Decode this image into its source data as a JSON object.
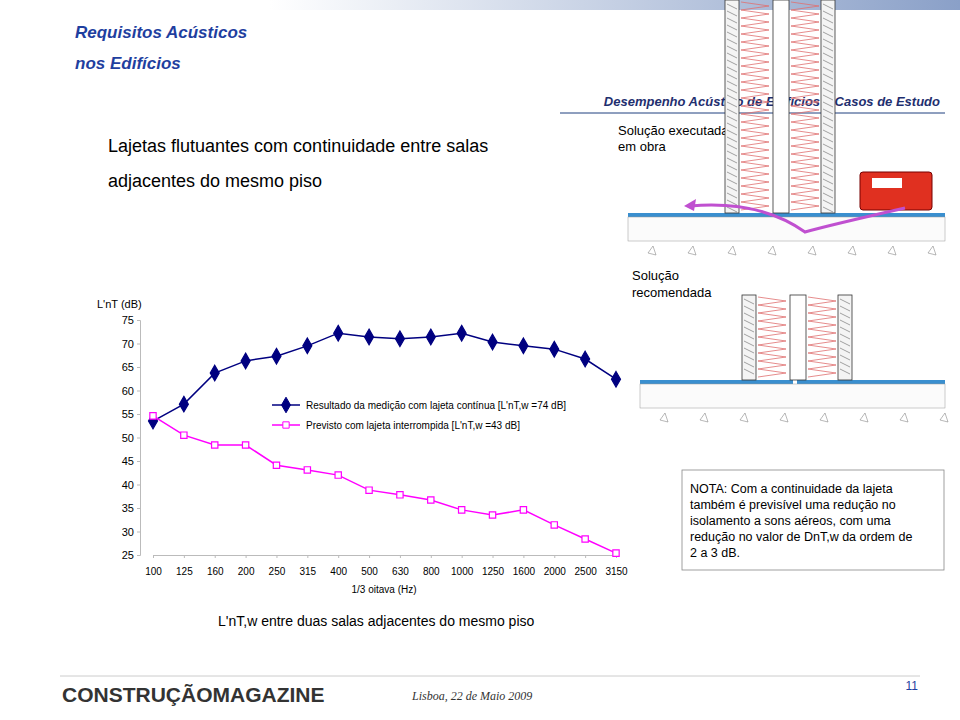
{
  "slide": {
    "header": [
      "Requisitos Acústicos",
      "nos Edifícios"
    ],
    "section": "Desempenho Acústico de Edifícios – Casos de Estudo",
    "title": [
      "Lajetas flutuantes com continuidade entre salas",
      "adjacentes do mesmo piso"
    ],
    "executed": [
      "Solução executada",
      "em obra"
    ],
    "recommended": [
      "Solução",
      "recomendada"
    ],
    "note": [
      "NOTA: Com a continuidade da lajeta",
      "também é previsível uma redução no",
      "isolamento a sons aéreos, com uma",
      "redução no valor de DnT,w da ordem de",
      "2 a 3 dB."
    ],
    "footer_brand": "CONSTRUÇÃOMAGAZINE",
    "footer_date": "Lisboa, 22 de Maio 2009",
    "page": "11"
  },
  "chart_data": {
    "type": "line",
    "title": "L'nT,w entre duas salas adjacentes do mesmo piso",
    "x_label": "1/3 oitava (Hz)",
    "y_label": "L'nT (dB)",
    "categories": [
      "100",
      "125",
      "160",
      "200",
      "250",
      "315",
      "400",
      "500",
      "630",
      "800",
      "1000",
      "1250",
      "1600",
      "2000",
      "2500",
      "3150"
    ],
    "series": [
      {
        "name": "Resultado da medição com lajeta contínua [L'nT,w =74 dB]",
        "color": "#000080",
        "marker": "diamond",
        "line_style": "solid",
        "values": [
          53.5,
          57.1,
          63.7,
          66.3,
          67.3,
          69.5,
          72.2,
          71.4,
          71.0,
          71.4,
          72.2,
          70.3,
          69.5,
          68.8,
          66.7,
          62.4
        ]
      },
      {
        "name": "Previsto com lajeta interrompida [L'nT,w =43 dB]",
        "color": "#ff00ff",
        "marker": "square",
        "line_style": "solid",
        "values": [
          54.6,
          50.5,
          48.4,
          48.4,
          44.1,
          43.1,
          42.0,
          38.8,
          37.8,
          36.7,
          34.6,
          33.5,
          34.6,
          31.4,
          28.4,
          25.4
        ]
      }
    ],
    "ylim": [
      25,
      75
    ],
    "yticks": [
      25,
      30,
      35,
      40,
      45,
      50,
      55,
      60,
      65,
      70,
      75
    ],
    "grid": false,
    "legend": "center"
  }
}
